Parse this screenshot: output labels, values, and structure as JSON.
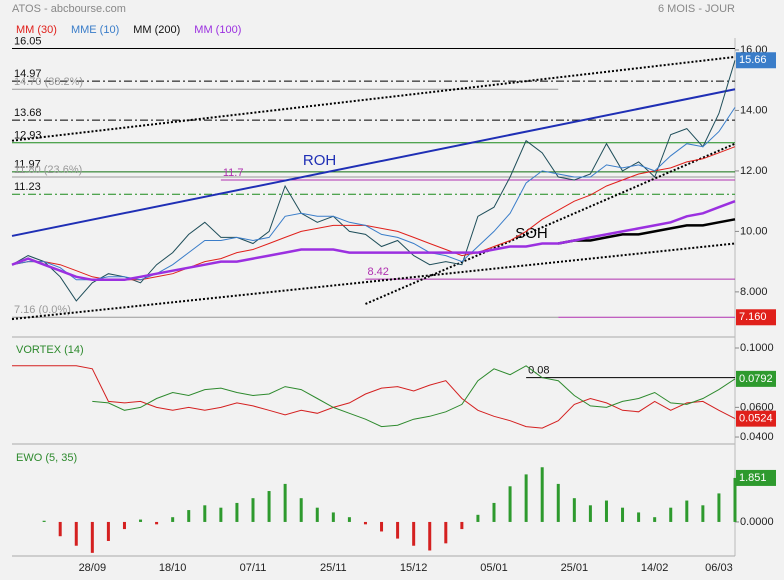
{
  "chart_data": [
    {
      "type": "line",
      "title": "ATOS - abcbourse.com",
      "subtitle": "6 MOIS - JOUR",
      "ylim": [
        6.64,
        16.33
      ],
      "yticks": [
        {
          "value": 16,
          "label": "16.00"
        },
        {
          "value": 14,
          "label": "14.00"
        },
        {
          "value": 12,
          "label": "12.00"
        },
        {
          "value": 10,
          "label": "10.00"
        },
        {
          "value": 8,
          "label": "8.000"
        }
      ],
      "series": [
        {
          "color": "#1f4e5a",
          "width": 1,
          "values": [
            8.9,
            9.2,
            9.0,
            8.5,
            7.7,
            8.3,
            8.6,
            8.5,
            8.3,
            8.9,
            9.3,
            9.9,
            10.3,
            9.8,
            9.8,
            9.6,
            10.0,
            11.5,
            10.6,
            10.3,
            10.5,
            10.0,
            9.9,
            9.5,
            9.7,
            9.2,
            8.9,
            9.0,
            8.9,
            10.5,
            10.8,
            11.8,
            13.0,
            12.6,
            11.8,
            11.7,
            11.9,
            12.9,
            12.0,
            12.3,
            11.8,
            13.2,
            13.4,
            12.8,
            13.9,
            15.66
          ]
        },
        {
          "name": "MM (30)",
          "color": "#e0201b",
          "width": 1,
          "values": [
            8.9,
            9.0,
            9.0,
            8.9,
            8.7,
            8.5,
            8.4,
            8.4,
            8.4,
            8.5,
            8.6,
            8.8,
            9.0,
            9.1,
            9.3,
            9.4,
            9.6,
            9.8,
            10.0,
            10.1,
            10.2,
            10.2,
            10.2,
            10.1,
            10.0,
            9.8,
            9.6,
            9.4,
            9.2,
            9.3,
            9.5,
            9.7,
            10.0,
            10.4,
            10.7,
            11.0,
            11.2,
            11.5,
            11.7,
            11.9,
            12.0,
            12.1,
            12.3,
            12.4,
            12.6,
            12.8
          ]
        },
        {
          "name": "MME (10)",
          "color": "#3a7dc9",
          "width": 1,
          "values": [
            8.9,
            9.0,
            9.0,
            8.8,
            8.4,
            8.4,
            8.5,
            8.5,
            8.4,
            8.6,
            8.9,
            9.3,
            9.7,
            9.7,
            9.8,
            9.7,
            9.8,
            10.5,
            10.6,
            10.5,
            10.5,
            10.3,
            10.2,
            9.9,
            9.8,
            9.6,
            9.3,
            9.2,
            9.0,
            9.5,
            10.0,
            10.6,
            11.6,
            12.0,
            11.9,
            11.8,
            11.8,
            12.2,
            12.1,
            12.2,
            12.0,
            12.5,
            12.9,
            12.8,
            13.3,
            14.1
          ]
        },
        {
          "name": "MM (200)",
          "color": "#000000",
          "width": 2.5,
          "values": [
            null,
            null,
            null,
            null,
            null,
            null,
            null,
            null,
            null,
            null,
            null,
            null,
            null,
            null,
            null,
            null,
            null,
            null,
            null,
            null,
            null,
            null,
            null,
            null,
            null,
            null,
            null,
            null,
            null,
            null,
            null,
            null,
            null,
            null,
            9.6,
            9.7,
            9.7,
            9.8,
            9.9,
            9.9,
            10.0,
            10.1,
            10.2,
            10.2,
            10.3,
            10.4
          ]
        },
        {
          "name": "MM (100)",
          "color": "#9b30e0",
          "width": 2.5,
          "values": [
            8.9,
            9.1,
            8.9,
            8.7,
            8.5,
            8.4,
            8.4,
            8.4,
            8.5,
            8.6,
            8.7,
            8.8,
            8.9,
            9.0,
            9.0,
            9.1,
            9.2,
            9.3,
            9.4,
            9.4,
            9.4,
            9.3,
            9.3,
            9.3,
            9.3,
            9.3,
            9.3,
            9.3,
            9.3,
            9.3,
            9.4,
            9.5,
            9.5,
            9.6,
            9.6,
            9.7,
            9.8,
            9.9,
            10.0,
            10.1,
            10.2,
            10.3,
            10.5,
            10.6,
            10.8,
            11.0
          ]
        }
      ],
      "levels": [
        {
          "value": 16.05,
          "color": "#000000",
          "style": "solid"
        },
        {
          "value": 14.97,
          "color": "#000000",
          "style": "dashdot"
        },
        {
          "value": 14.7,
          "label": "14.70 (38.2%)",
          "color": "#999999",
          "style": "solid",
          "end": 34
        },
        {
          "value": 13.68,
          "color": "#000000",
          "style": "dashdot"
        },
        {
          "value": 12.93,
          "color": "#1a8a1a",
          "style": "solid"
        },
        {
          "value": 11.97,
          "color": "#107010",
          "style": "solid"
        },
        {
          "value": 11.8,
          "label": "11.80 (23.6%)",
          "color": "#999999",
          "style": "solid"
        },
        {
          "value": 11.7,
          "color": "#b030b0",
          "style": "solid",
          "start": 13
        },
        {
          "value": 11.23,
          "color": "#1a8a1a",
          "style": "dashdot"
        },
        {
          "value": 8.42,
          "color": "#b030b0",
          "style": "solid",
          "start": 22
        },
        {
          "value": 7.16,
          "label": "7.16 (0.0%)",
          "color": "#999999",
          "style": "solid",
          "end": 34
        }
      ],
      "lines": [
        {
          "label": "ROH",
          "color": "#1f2fb5",
          "style": "solid",
          "from": [
            0,
            9.85
          ],
          "to": [
            45,
            14.7
          ]
        },
        {
          "color": "#000000",
          "style": "dotted",
          "from": [
            0,
            13.0
          ],
          "to": [
            45,
            15.77
          ]
        },
        {
          "color": "#000000",
          "style": "dotted",
          "from": [
            0,
            7.1
          ],
          "to": [
            45,
            9.6
          ]
        },
        {
          "label": "SOH",
          "color": "#000000",
          "style": "dotted",
          "from": [
            22,
            7.6
          ],
          "to": [
            45,
            12.9
          ]
        }
      ],
      "badges": [
        {
          "value": 15.66,
          "color": "#3a7dc9"
        },
        {
          "value": 7.16,
          "label": "7.160",
          "color": "#e0201b",
          "start": 34
        }
      ]
    },
    {
      "type": "line",
      "title": "VORTEX (14)",
      "ylim": [
        0.038,
        0.1054
      ],
      "yticks": [
        {
          "value": 0.1,
          "label": "0.1000"
        },
        {
          "value": 0.06,
          "label": "0.0600"
        },
        {
          "value": 0.04,
          "label": "0.0400"
        }
      ],
      "series": [
        {
          "color": "#d42020",
          "width": 1,
          "values": [
            0.088,
            0.088,
            0.088,
            0.088,
            0.088,
            0.086,
            0.064,
            0.063,
            0.064,
            0.06,
            0.058,
            0.06,
            0.058,
            0.06,
            0.063,
            0.061,
            0.058,
            0.055,
            0.058,
            0.056,
            0.06,
            0.063,
            0.069,
            0.073,
            0.074,
            0.071,
            0.075,
            0.078,
            0.066,
            0.058,
            0.054,
            0.051,
            0.047,
            0.046,
            0.051,
            0.062,
            0.066,
            0.063,
            0.058,
            0.057,
            0.064,
            0.058,
            0.063,
            0.064,
            0.058,
            0.0524
          ]
        },
        {
          "color": "#2e8a2e",
          "width": 1,
          "values": [
            null,
            null,
            null,
            null,
            null,
            0.064,
            0.063,
            0.058,
            0.06,
            0.066,
            0.07,
            0.068,
            0.072,
            0.073,
            0.07,
            0.068,
            0.069,
            0.074,
            0.072,
            0.066,
            0.06,
            0.056,
            0.052,
            0.047,
            0.048,
            0.052,
            0.054,
            0.057,
            0.062,
            0.078,
            0.086,
            0.082,
            0.088,
            0.08,
            0.078,
            0.068,
            0.061,
            0.06,
            0.064,
            0.066,
            0.07,
            0.063,
            0.062,
            0.066,
            0.072,
            0.0792
          ]
        }
      ],
      "levels": [
        {
          "value": 0.08,
          "color": "#000000",
          "style": "solid",
          "start": 32
        }
      ],
      "badges": [
        {
          "value": 0.0792,
          "color": "#2e9a2e"
        },
        {
          "value": 0.0524,
          "color": "#e0201b"
        }
      ]
    },
    {
      "type": "bar",
      "title": "EWO (5, 35)",
      "ylim": [
        -1.39,
        3.11
      ],
      "yticks": [
        {
          "value": 0,
          "label": "0.0000"
        }
      ],
      "colors": {
        "positive": "#2e9a2e",
        "negative": "#d42020"
      },
      "values": [
        null,
        null,
        0.05,
        -0.6,
        -1.0,
        -1.3,
        -0.8,
        -0.3,
        0.1,
        -0.1,
        0.2,
        0.5,
        0.7,
        0.6,
        0.8,
        1.0,
        1.3,
        1.6,
        1.0,
        0.6,
        0.4,
        0.2,
        -0.1,
        -0.4,
        -0.7,
        -1.0,
        -1.2,
        -0.9,
        -0.3,
        0.3,
        0.8,
        1.5,
        2.0,
        2.3,
        1.6,
        1.0,
        0.7,
        0.9,
        0.6,
        0.4,
        0.2,
        0.6,
        0.9,
        0.7,
        1.2,
        1.851
      ],
      "badges": [
        {
          "value": 1.851,
          "color": "#2e9a2e"
        }
      ],
      "categories": [
        null,
        null,
        null,
        null,
        null,
        "28/09",
        null,
        null,
        null,
        null,
        "18/10",
        null,
        null,
        null,
        null,
        "07/11",
        null,
        null,
        null,
        null,
        "25/11",
        null,
        null,
        null,
        null,
        "15/12",
        null,
        null,
        null,
        null,
        "05/01",
        null,
        null,
        null,
        null,
        "25/01",
        null,
        null,
        null,
        null,
        "14/02",
        null,
        null,
        null,
        "06/03",
        null
      ]
    }
  ]
}
